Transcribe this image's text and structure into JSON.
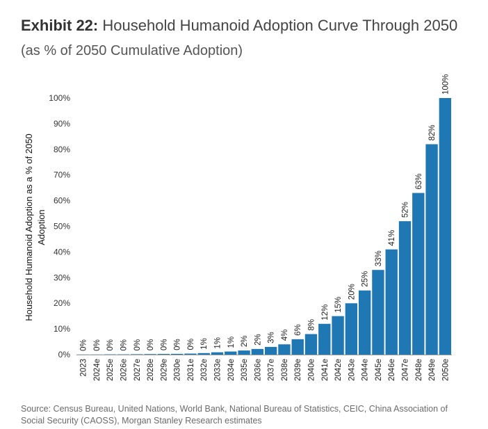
{
  "header": {
    "exhibit": "Exhibit 22:",
    "title": "Household Humanoid Adoption Curve Through 2050",
    "subtitle": "(as % of 2050 Cumulative Adoption)"
  },
  "source": "Source: Census Bureau, United Nations, World Bank, National Bureau of Statistics, CEIC, China Association of Social Security (CAOSS), Morgan Stanley Research estimates",
  "colors": {
    "bar": "#1f77b4"
  },
  "chart_data": {
    "type": "bar",
    "title": "Household Humanoid Adoption Curve Through 2050",
    "ylabel_line1": "Household Humanoid Adoption as a % of 2050",
    "ylabel_line2": "Adoption",
    "ylim": [
      0,
      100
    ],
    "yticks": [
      "0%",
      "10%",
      "20%",
      "30%",
      "40%",
      "50%",
      "60%",
      "70%",
      "80%",
      "90%",
      "100%"
    ],
    "categories": [
      "2023",
      "2024e",
      "2025e",
      "2026e",
      "2027e",
      "2028e",
      "2029e",
      "2030e",
      "2031e",
      "2032e",
      "2033e",
      "2034e",
      "2035e",
      "2036e",
      "2037e",
      "2038e",
      "2039e",
      "2040e",
      "2041e",
      "2042e",
      "2043e",
      "2044e",
      "2045e",
      "2046e",
      "2047e",
      "2048e",
      "2049e",
      "2050e"
    ],
    "values": [
      0.05,
      0.05,
      0.1,
      0.1,
      0.15,
      0.2,
      0.25,
      0.3,
      0.4,
      0.6,
      0.9,
      1.2,
      1.6,
      2.2,
      3,
      4,
      6,
      8,
      12,
      15,
      20,
      25,
      33,
      41,
      52,
      63,
      82,
      100
    ],
    "labels": [
      "0%",
      "0%",
      "0%",
      "0%",
      "0%",
      "0%",
      "0%",
      "0%",
      "0%",
      "1%",
      "1%",
      "1%",
      "2%",
      "2%",
      "3%",
      "4%",
      "6%",
      "8%",
      "12%",
      "15%",
      "20%",
      "25%",
      "33%",
      "41%",
      "52%",
      "63%",
      "82%",
      "100%"
    ],
    "grid": false,
    "legend": "none"
  }
}
